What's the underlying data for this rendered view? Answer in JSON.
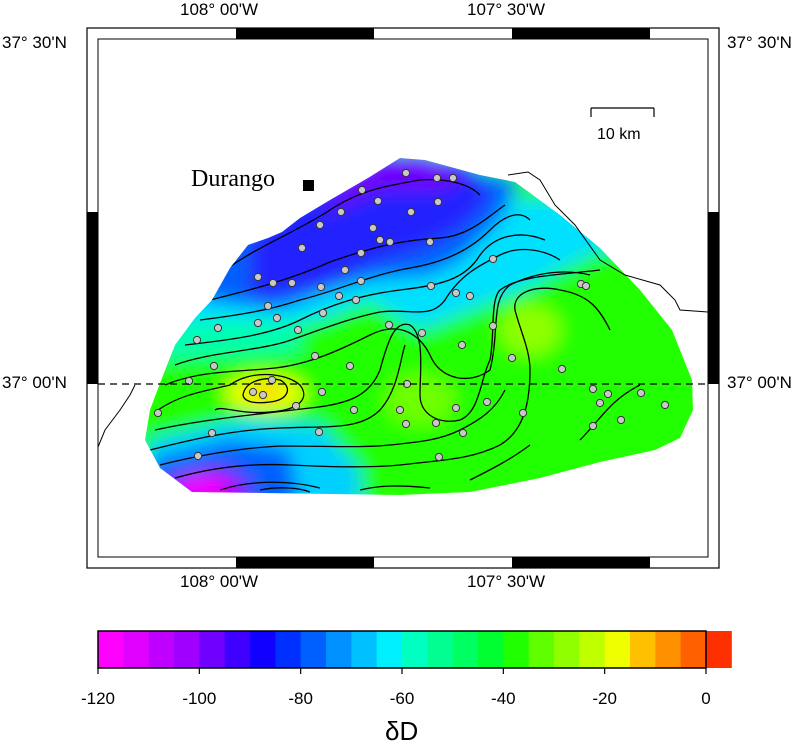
{
  "map": {
    "place_name": "Durango",
    "scale_bar_label": "10 km",
    "lon_labels": [
      "108° 00'W",
      "107° 30'W"
    ],
    "lat_labels": [
      "37° 30'N",
      "37° 00'N"
    ],
    "reference_line_latitude": "37° 00'N",
    "site_marker_color": "#c8c8c8"
  },
  "colorbar": {
    "title": "δD",
    "tick_labels": [
      "-120",
      "-100",
      "-80",
      "-60",
      "-40",
      "-20",
      "0"
    ],
    "min": -120,
    "max": 0,
    "step": 5,
    "colors": [
      "#ff00ff",
      "#e000ff",
      "#c000ff",
      "#a000ff",
      "#7000ff",
      "#4000ff",
      "#1000ff",
      "#0030ff",
      "#0060ff",
      "#0090ff",
      "#00c0ff",
      "#00f0ff",
      "#00ffc0",
      "#00ff90",
      "#00ff60",
      "#00ff30",
      "#20ff00",
      "#60ff00",
      "#90ff00",
      "#c0ff00",
      "#f0ff00",
      "#ffc000",
      "#ff9000",
      "#ff6000",
      "#ff3000"
    ]
  }
}
